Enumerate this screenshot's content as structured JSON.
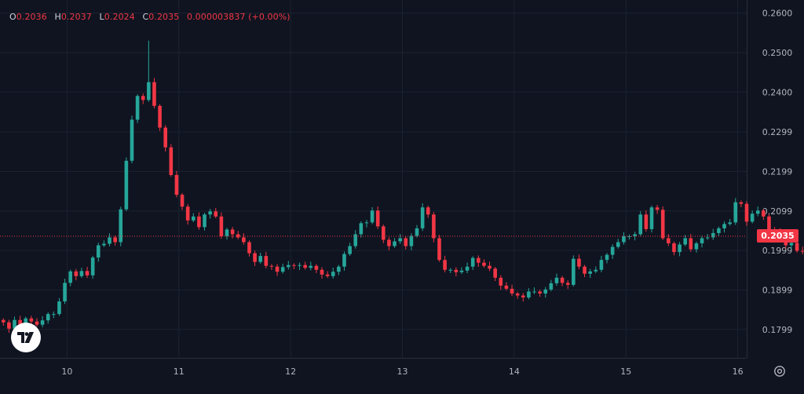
{
  "legend": {
    "o_key": "O",
    "o": "0.2036",
    "h_key": "H",
    "h": "0.2037",
    "l_key": "L",
    "l": "0.2024",
    "c_key": "C",
    "c": "0.2035",
    "change": "0.000003837 (+0.00%)"
  },
  "last_price_label": "0.2035",
  "icons": {
    "logo": "tradingview-logo-icon",
    "settings": "gear-icon"
  },
  "colors": {
    "background": "#0f1420",
    "grid": "#1c2230",
    "up": "#26a69a",
    "down": "#f23645",
    "axis_text": "#b2b5be"
  },
  "chart_data": {
    "type": "candlestick",
    "title": "",
    "xlabel": "",
    "ylabel": "",
    "x_ticks": [
      "10",
      "11",
      "12",
      "13",
      "14",
      "15",
      "16"
    ],
    "y_ticks": [
      "0.1799",
      "0.1899",
      "0.1999",
      "0.2099",
      "0.2199",
      "0.2299",
      "0.2400",
      "0.2500",
      "0.2600"
    ],
    "ylim": [
      0.1727,
      0.2633
    ],
    "xlim": [
      9.4,
      16.08
    ],
    "grid": true,
    "last_price": 0.2035,
    "candle_interval_days": 0.05,
    "closes": [
      0.1817,
      0.1801,
      0.1823,
      0.1812,
      0.1827,
      0.1819,
      0.1811,
      0.1822,
      0.1838,
      0.1838,
      0.187,
      0.1917,
      0.1946,
      0.1934,
      0.1947,
      0.1936,
      0.1981,
      0.2012,
      0.2016,
      0.2032,
      0.202,
      0.2103,
      0.2226,
      0.233,
      0.239,
      0.238,
      0.2425,
      0.2365,
      0.231,
      0.226,
      0.219,
      0.214,
      0.211,
      0.2075,
      0.2085,
      0.2058,
      0.209,
      0.2098,
      0.2085,
      0.2035,
      0.2052,
      0.204,
      0.2032,
      0.202,
      0.1992,
      0.197,
      0.1985,
      0.196,
      0.1958,
      0.1945,
      0.1957,
      0.1962,
      0.196,
      0.1962,
      0.1955,
      0.196,
      0.195,
      0.1938,
      0.1934,
      0.1945,
      0.1958,
      0.199,
      0.201,
      0.204,
      0.2068,
      0.207,
      0.21,
      0.206,
      0.2026,
      0.201,
      0.2022,
      0.203,
      0.201,
      0.2036,
      0.2055,
      0.2108,
      0.209,
      0.203,
      0.1975,
      0.195,
      0.195,
      0.1944,
      0.1948,
      0.1958,
      0.198,
      0.1968,
      0.196,
      0.1953,
      0.193,
      0.191,
      0.1902,
      0.189,
      0.1885,
      0.188,
      0.1895,
      0.1895,
      0.189,
      0.19,
      0.1916,
      0.193,
      0.1917,
      0.1912,
      0.1978,
      0.1958,
      0.194,
      0.1946,
      0.195,
      0.1975,
      0.1988,
      0.2008,
      0.202,
      0.2035,
      0.2035,
      0.204,
      0.209,
      0.2053,
      0.2108,
      0.2102,
      0.203,
      0.2017,
      0.1995,
      0.2014,
      0.203,
      0.2002,
      0.2017,
      0.203,
      0.2032,
      0.2043,
      0.2055,
      0.2066,
      0.207,
      0.2121,
      0.2117,
      0.2072,
      0.2092,
      0.21,
      0.2085,
      0.205,
      0.2045,
      0.2035,
      0.2012,
      0.2018,
      0.1998,
      0.1996,
      0.2016,
      0.2058,
      0.2085,
      0.2065,
      0.2056,
      0.204,
      0.2025,
      0.201,
      0.2026,
      0.2038,
      0.2037,
      0.2035,
      0.2035
    ]
  }
}
